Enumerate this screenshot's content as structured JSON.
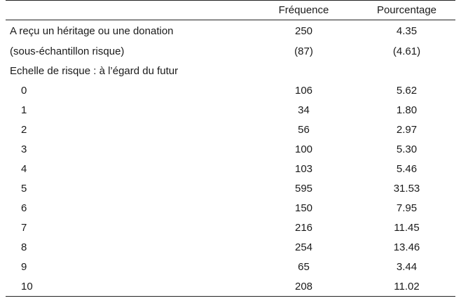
{
  "header": {
    "col_label": "",
    "col_freq": "Fréquence",
    "col_pct": "Pourcentage"
  },
  "rows": [
    {
      "label": "A reçu un héritage ou une donation",
      "freq": "250",
      "pct": "4.35"
    },
    {
      "label": "(sous-échantillon risque)",
      "freq": "(87)",
      "pct": "(4.61)"
    },
    {
      "label": "Echelle de risque : à l’égard du futur",
      "freq": "",
      "pct": ""
    },
    {
      "label": "0",
      "freq": "106",
      "pct": "5.62"
    },
    {
      "label": "1",
      "freq": "34",
      "pct": "1.80"
    },
    {
      "label": "2",
      "freq": "56",
      "pct": "2.97"
    },
    {
      "label": "3",
      "freq": "100",
      "pct": "5.30"
    },
    {
      "label": "4",
      "freq": "103",
      "pct": "5.46"
    },
    {
      "label": "5",
      "freq": "595",
      "pct": "31.53"
    },
    {
      "label": "6",
      "freq": "150",
      "pct": "7.95"
    },
    {
      "label": "7",
      "freq": "216",
      "pct": "11.45"
    },
    {
      "label": "8",
      "freq": "254",
      "pct": "13.46"
    },
    {
      "label": "9",
      "freq": "65",
      "pct": "3.44"
    },
    {
      "label": "10",
      "freq": "208",
      "pct": "11.02"
    }
  ]
}
